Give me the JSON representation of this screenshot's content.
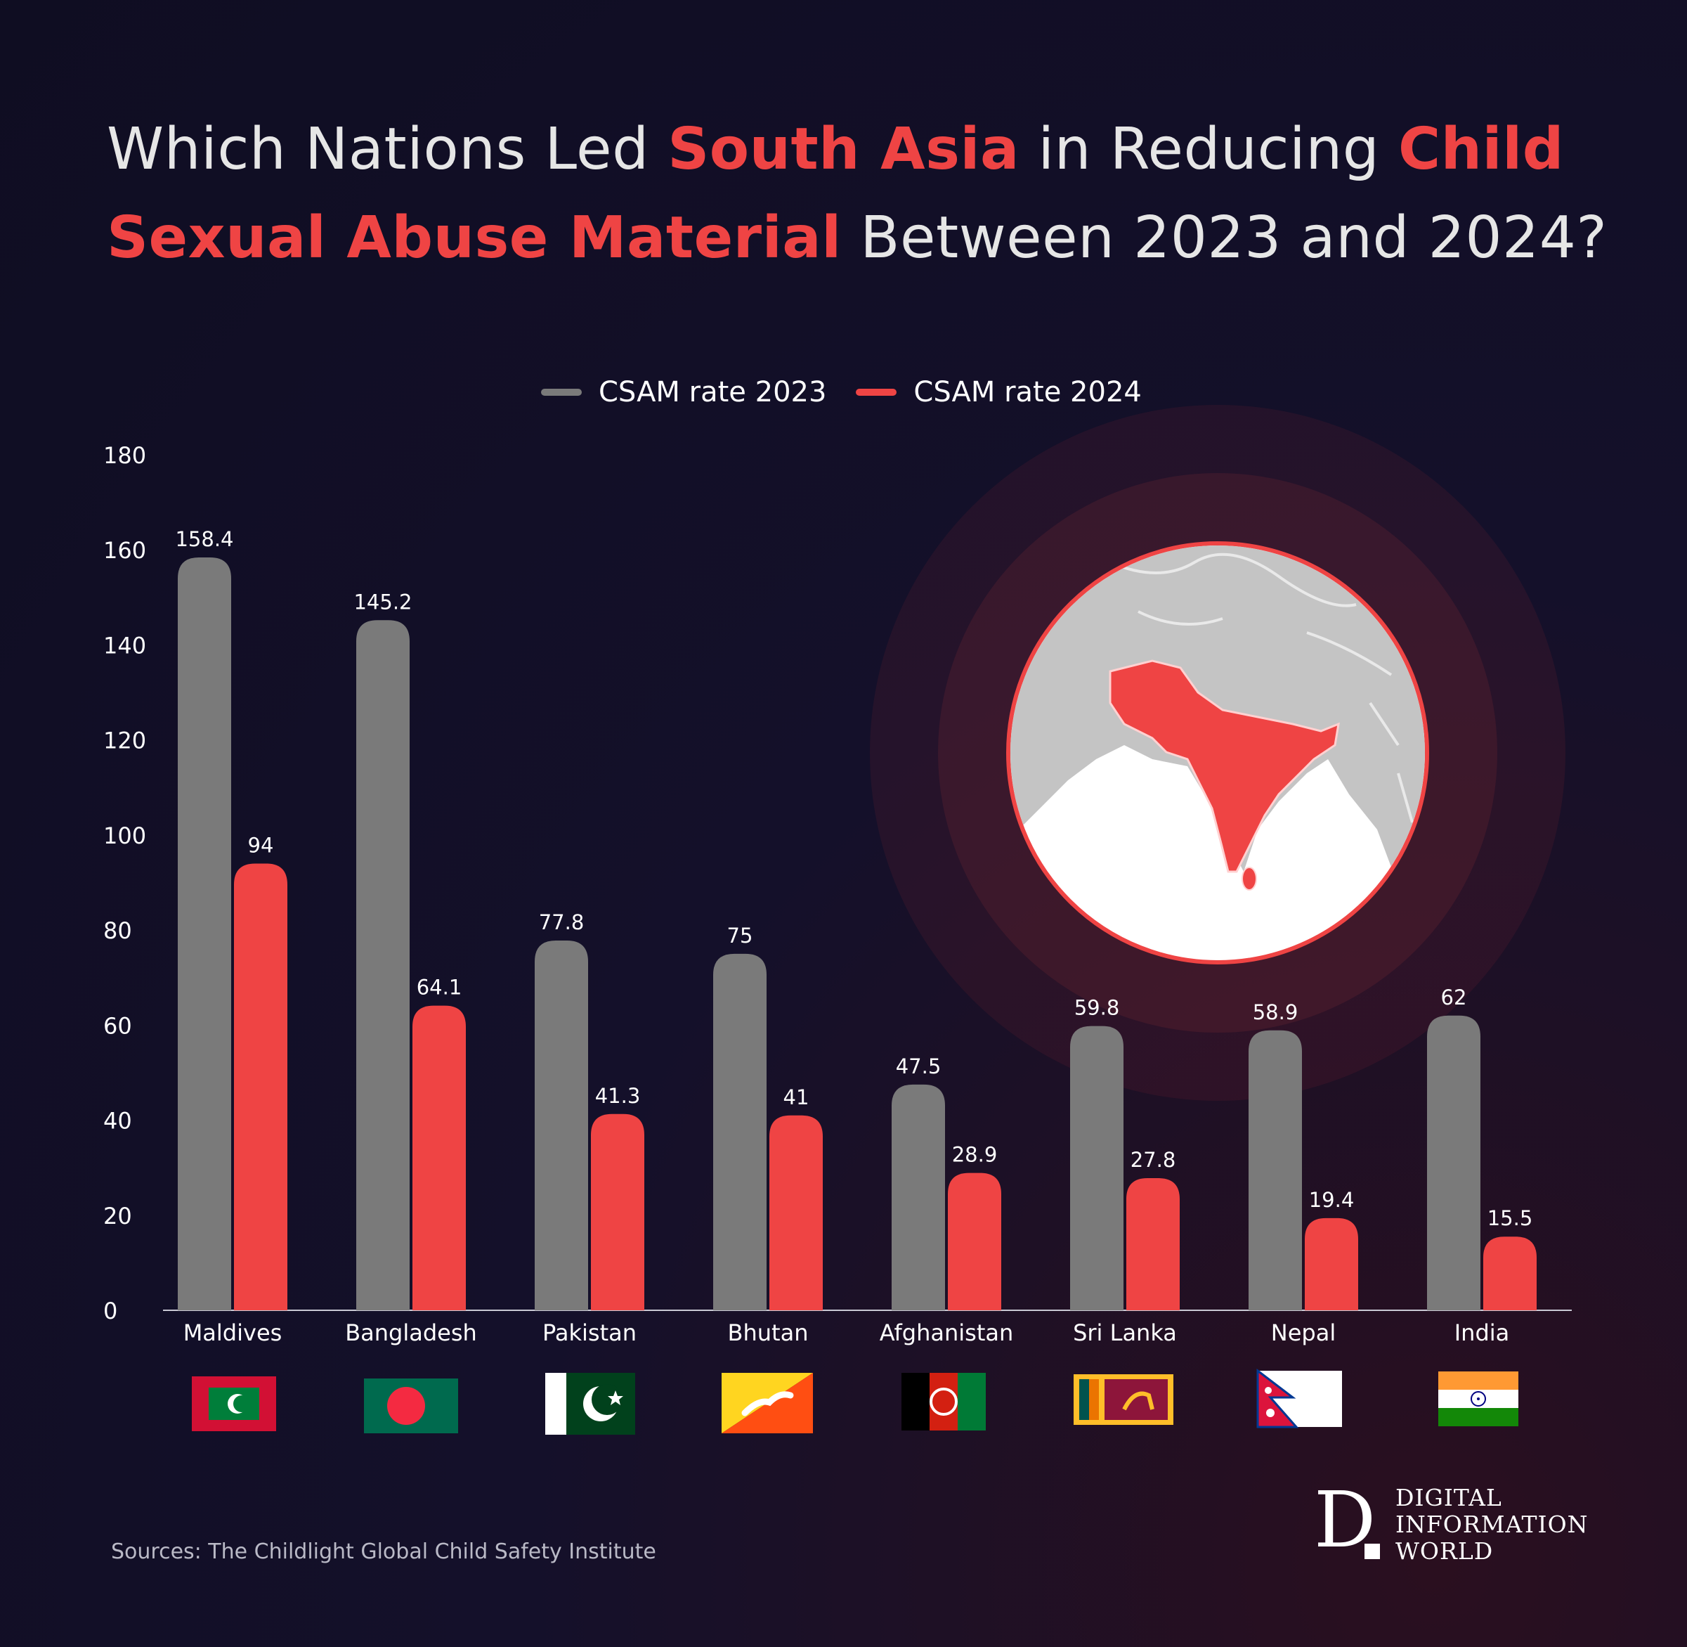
{
  "title": {
    "part1": "Which Nations Led ",
    "hl1": "South Asia",
    "part2": " in Reducing ",
    "hl2": "Child Sexual Abuse Material",
    "part3": " Between 2023 and 2024?"
  },
  "colors": {
    "series_2023": "#7a7a7a",
    "series_2024": "#ef4444",
    "accent": "#ef4444"
  },
  "chart_data": {
    "type": "bar",
    "categories": [
      "Maldives",
      "Bangladesh",
      "Pakistan",
      "Bhutan",
      "Afghanistan",
      "Sri Lanka",
      "Nepal",
      "India"
    ],
    "series": [
      {
        "name": "CSAM rate 2023",
        "values": [
          158.4,
          145.2,
          77.8,
          75,
          47.5,
          59.8,
          58.9,
          62
        ]
      },
      {
        "name": "CSAM rate 2024",
        "values": [
          94,
          64.1,
          41.3,
          41,
          28.9,
          27.8,
          19.4,
          15.5
        ]
      }
    ],
    "value_labels": [
      [
        "158.4",
        "145.2",
        "77.8",
        "75",
        "47.5",
        "59.8",
        "58.9",
        "62"
      ],
      [
        "94",
        "64.1",
        "41.3",
        "41",
        "28.9",
        "27.8",
        "19.4",
        "15.5"
      ]
    ],
    "yticks": [
      "0",
      "20",
      "40",
      "60",
      "80",
      "100",
      "120",
      "140",
      "160",
      "180"
    ],
    "ylim": [
      0,
      180
    ],
    "legend": "top-center",
    "grid": false
  },
  "flags": [
    "maldives-flag",
    "bangladesh-flag",
    "pakistan-flag",
    "bhutan-flag",
    "afghanistan-flag",
    "sri-lanka-flag",
    "nepal-flag",
    "india-flag"
  ],
  "source": "Sources: The Childlight Global Child Safety Institute",
  "logo": {
    "mark": "D",
    "line1": "DIGITAL",
    "line2": "INFORMATION",
    "line3": "WORLD"
  }
}
